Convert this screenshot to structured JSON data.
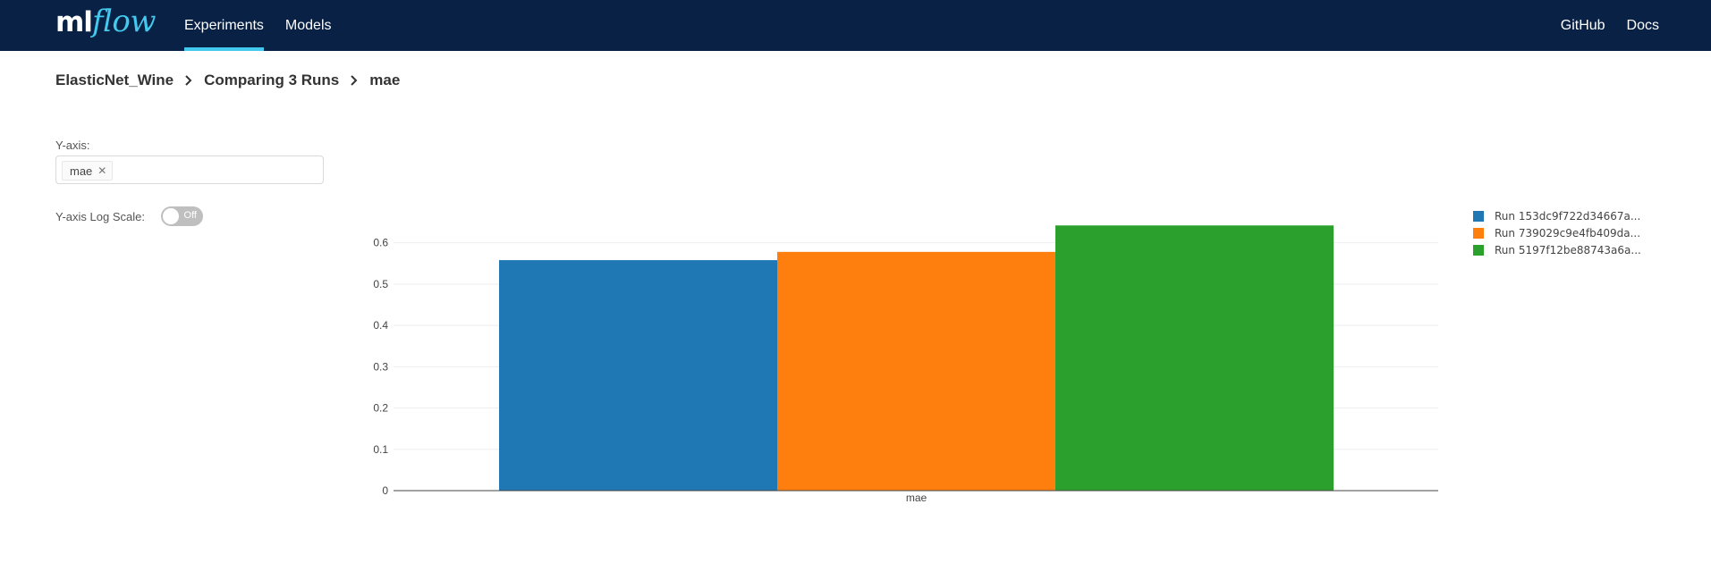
{
  "header": {
    "logo_ml": "ml",
    "logo_flow": "flow",
    "nav_left": [
      {
        "label": "Experiments",
        "active": true
      },
      {
        "label": "Models",
        "active": false
      }
    ],
    "nav_right": [
      {
        "label": "GitHub"
      },
      {
        "label": "Docs"
      }
    ],
    "accent_color": "#43c9ed",
    "bar_color": "#082145"
  },
  "breadcrumb": {
    "experiment": "ElasticNet_Wine",
    "comparison": "Comparing 3 Runs",
    "metric": "mae"
  },
  "controls": {
    "y_axis_label": "Y-axis:",
    "y_axis_selected": "mae",
    "log_scale_label": "Y-axis Log Scale:",
    "log_scale_state": "Off"
  },
  "chart_data": {
    "type": "bar",
    "categories": [
      "mae"
    ],
    "series": [
      {
        "name": "Run 153dc9f722d34667a...",
        "values": [
          0.558
        ],
        "color": "#1f77b4"
      },
      {
        "name": "Run 739029c9e4fb409da...",
        "values": [
          0.578
        ],
        "color": "#ff7f0e"
      },
      {
        "name": "Run 5197f12be88743a6a...",
        "values": [
          0.642
        ],
        "color": "#2ca02c"
      }
    ],
    "yticks": [
      0,
      0.1,
      0.2,
      0.3,
      0.4,
      0.5,
      0.6
    ],
    "ylim": [
      0,
      0.675
    ],
    "grid": true,
    "legend": "right",
    "title": "",
    "xlabel": "",
    "ylabel": ""
  }
}
